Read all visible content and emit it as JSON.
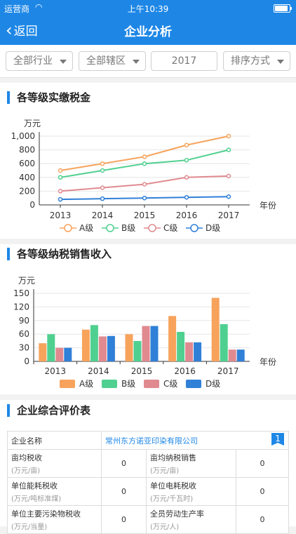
{
  "status": {
    "carrier": "运营商",
    "time": "上午10:39"
  },
  "nav": {
    "back": "返回",
    "title": "企业分析"
  },
  "filters": {
    "industry": "全部行业",
    "district": "全部辖区",
    "year": "2017",
    "sort": "排序方式"
  },
  "line_section": {
    "title": "各等级实缴税金"
  },
  "bar_section": {
    "title": "各等级纳税销售收入"
  },
  "table_section": {
    "title": "企业综合评价表"
  },
  "chart_data": [
    {
      "type": "line",
      "ylabel": "万元",
      "xlabel": "年份",
      "x": [
        "2013",
        "2014",
        "2015",
        "2016",
        "2017"
      ],
      "ylim": [
        0,
        1000
      ],
      "yticks": [
        "0",
        "200",
        "400",
        "600",
        "800",
        "1,000"
      ],
      "grid": true,
      "legend": "bottom",
      "series": [
        {
          "name": "A级",
          "color": "#f7a35c",
          "values": [
            500,
            600,
            700,
            870,
            1000
          ]
        },
        {
          "name": "B级",
          "color": "#50d090",
          "values": [
            400,
            500,
            600,
            650,
            800
          ]
        },
        {
          "name": "C级",
          "color": "#e08a90",
          "values": [
            200,
            250,
            300,
            400,
            420
          ]
        },
        {
          "name": "D级",
          "color": "#3080d8",
          "values": [
            80,
            90,
            100,
            110,
            120
          ]
        }
      ]
    },
    {
      "type": "bar",
      "ylabel": "万元",
      "xlabel": "年份",
      "categories": [
        "2013",
        "2014",
        "2015",
        "2016",
        "2017"
      ],
      "ylim": [
        0,
        150
      ],
      "yticks": [
        "0",
        "30",
        "60",
        "90",
        "120",
        "150"
      ],
      "grid": true,
      "legend": "bottom",
      "series": [
        {
          "name": "A级",
          "color": "#f7a35c",
          "values": [
            40,
            70,
            60,
            100,
            140
          ]
        },
        {
          "name": "B级",
          "color": "#50d090",
          "values": [
            60,
            80,
            45,
            65,
            82
          ]
        },
        {
          "name": "C级",
          "color": "#e08a90",
          "values": [
            30,
            55,
            78,
            42,
            26
          ]
        },
        {
          "name": "D级",
          "color": "#3080d8",
          "values": [
            30,
            56,
            78,
            42,
            26
          ]
        }
      ]
    }
  ],
  "evaluation": {
    "name_label": "企业名称",
    "company": "常州东方诺亚印染有限公司",
    "rank": "1",
    "rows": [
      {
        "l_label": "亩均税收",
        "l_unit": "(万元/亩)",
        "l_value": "0",
        "r_label": "亩均纳税销售",
        "r_unit": "(万元/亩)",
        "r_value": "0"
      },
      {
        "l_label": "单位能耗税收",
        "l_unit": "(万元/吨标准煤)",
        "l_value": "0",
        "r_label": "单位电耗税收",
        "r_unit": "(万元/千瓦时)",
        "r_value": "0"
      },
      {
        "l_label": "单位主要污染物税收",
        "l_unit": "(万元/当量)",
        "l_value": "0",
        "r_label": "全员劳动生产率",
        "r_unit": "(万元/人)",
        "r_value": "0"
      }
    ]
  }
}
